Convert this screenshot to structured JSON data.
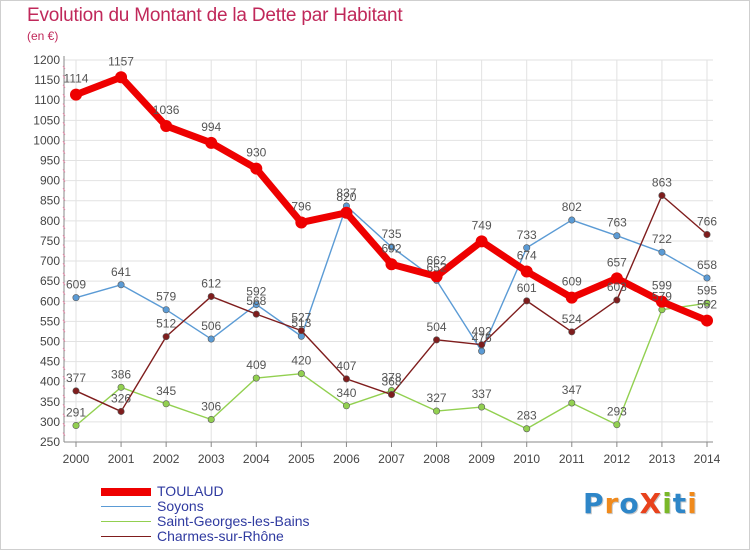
{
  "page": {
    "title": "Evolution du Montant de la Dette par Habitant",
    "subtitle": "(en €)"
  },
  "brand": {
    "text": "ProXiti",
    "letters": [
      {
        "ch": "P",
        "color": "#2e86c8"
      },
      {
        "ch": "r",
        "color": "#f08a1c"
      },
      {
        "ch": "o",
        "color": "#2e86c8"
      },
      {
        "ch": "X",
        "color": "#e8421c"
      },
      {
        "ch": "i",
        "color": "#7ab828"
      },
      {
        "ch": "t",
        "color": "#2e86c8"
      },
      {
        "ch": "i",
        "color": "#f08a1c"
      }
    ]
  },
  "chart_data": {
    "type": "line",
    "title": "Evolution du Montant de la Dette par Habitant",
    "subtitle": "(en €)",
    "xlabel": "",
    "ylabel": "",
    "x": [
      2000,
      2001,
      2002,
      2003,
      2004,
      2005,
      2006,
      2007,
      2008,
      2009,
      2010,
      2011,
      2012,
      2013,
      2014
    ],
    "ylim": [
      250,
      1200
    ],
    "yticks": [
      250,
      300,
      350,
      400,
      450,
      500,
      550,
      600,
      650,
      700,
      750,
      800,
      850,
      900,
      950,
      1000,
      1050,
      1100,
      1150,
      1200
    ],
    "grid": true,
    "legend_position": "bottom-left",
    "series": [
      {
        "name": "TOULAUD",
        "color": "#ee0000",
        "emphasis": true,
        "values": [
          1114,
          1157,
          1036,
          994,
          930,
          796,
          820,
          692,
          662,
          749,
          674,
          609,
          657,
          599,
          552
        ]
      },
      {
        "name": "Soyons",
        "color": "#5b9bd5",
        "values": [
          609,
          641,
          579,
          506,
          592,
          513,
          837,
          735,
          652,
          476,
          733,
          802,
          763,
          722,
          658
        ]
      },
      {
        "name": "Saint-Georges-les-Bains",
        "color": "#92d050",
        "values": [
          291,
          386,
          345,
          306,
          409,
          420,
          340,
          378,
          327,
          337,
          283,
          347,
          293,
          579,
          595
        ]
      },
      {
        "name": "Charmes-sur-Rhône",
        "color": "#7f1d1d",
        "values": [
          377,
          326,
          512,
          612,
          568,
          527,
          407,
          368,
          504,
          492,
          601,
          524,
          603,
          863,
          766
        ]
      }
    ]
  }
}
